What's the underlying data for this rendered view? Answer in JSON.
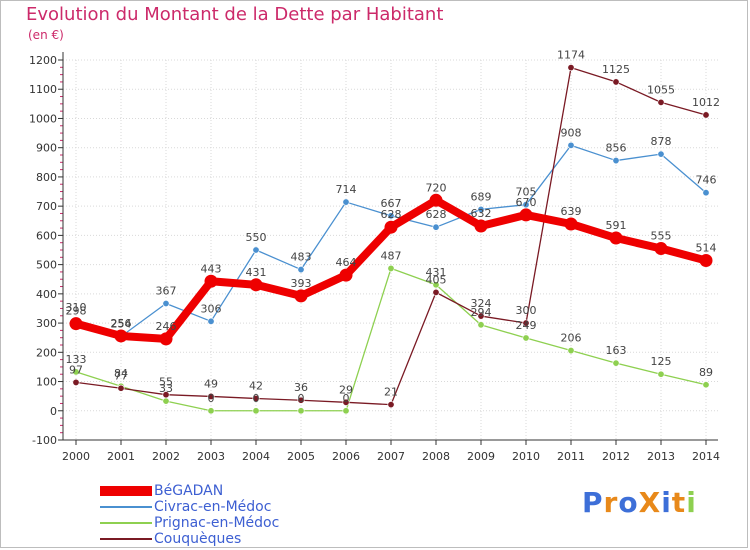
{
  "title": "Evolution du Montant de la Dette par Habitant",
  "unit_label": "(en €)",
  "logo_text": "ProXiti",
  "colors": {
    "title": "#cc2a6a",
    "axis": "#333333",
    "grid": "#d9d9d9",
    "legend_text": "#3d5fd2"
  },
  "chart_data": {
    "type": "line",
    "title": "Evolution du Montant de la Dette par Habitant",
    "ylabel": "(en €)",
    "xlabel": "",
    "x": [
      2000,
      2001,
      2002,
      2003,
      2004,
      2005,
      2006,
      2007,
      2008,
      2009,
      2010,
      2011,
      2012,
      2013,
      2014
    ],
    "ylim": [
      -100,
      1200
    ],
    "yticks": [
      -100,
      0,
      100,
      200,
      300,
      400,
      500,
      600,
      700,
      800,
      900,
      1000,
      1100,
      1200
    ],
    "grid": true,
    "legend_position": "bottom-left",
    "series": [
      {
        "name": "BéGADAN",
        "color": "#ee0000",
        "emphasis": true,
        "values": [
          298,
          256,
          246,
          443,
          431,
          393,
          464,
          628,
          720,
          632,
          670,
          639,
          591,
          555,
          514
        ],
        "labels": [
          "298",
          "256",
          "246",
          "443",
          "431",
          "393",
          "464",
          "628",
          "720",
          "632",
          "670",
          "639",
          "591",
          "555",
          "514"
        ]
      },
      {
        "name": "Civrac-en-Médoc",
        "color": "#4a90d0",
        "emphasis": false,
        "values": [
          310,
          254,
          367,
          306,
          550,
          483,
          714,
          667,
          628,
          689,
          705,
          908,
          856,
          878,
          746
        ],
        "labels": [
          "310",
          "254",
          "367",
          "306",
          "550",
          "483",
          "714",
          "667",
          "628",
          "689",
          "705",
          "908",
          "856",
          "878",
          "746"
        ]
      },
      {
        "name": "Prignac-en-Médoc",
        "color": "#8ed050",
        "emphasis": false,
        "values": [
          133,
          84,
          33,
          0,
          0,
          0,
          0,
          487,
          431,
          294,
          249,
          206,
          163,
          125,
          89
        ],
        "labels": [
          "133",
          "84",
          "33",
          "0",
          "0",
          "0",
          "0",
          "487",
          "431",
          "294",
          "249",
          "206",
          "163",
          "125",
          "89"
        ]
      },
      {
        "name": "Couquèques",
        "color": "#7a1a24",
        "emphasis": false,
        "values": [
          97,
          77,
          55,
          49,
          42,
          36,
          29,
          21,
          405,
          324,
          300,
          1174,
          1125,
          1055,
          1012
        ],
        "labels": [
          "97",
          "77",
          "55",
          "49",
          "42",
          "36",
          "29",
          "21",
          "405",
          "324",
          "300",
          "1174",
          "1125",
          "1055",
          "1012"
        ]
      }
    ]
  }
}
